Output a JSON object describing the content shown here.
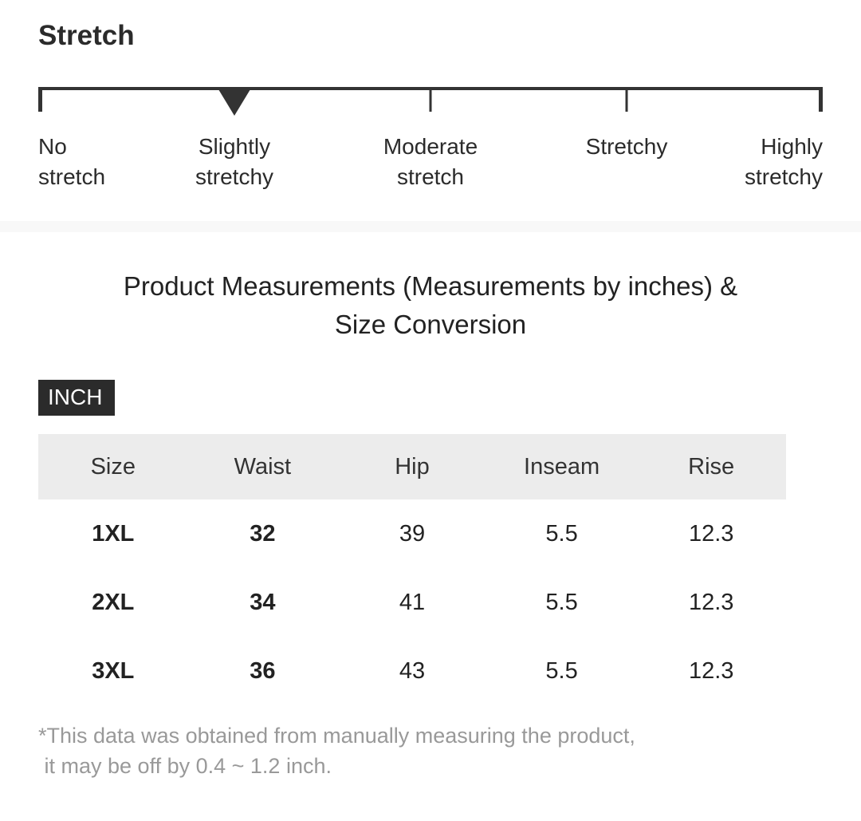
{
  "stretch": {
    "title": "Stretch",
    "levels": [
      {
        "label": "No\nstretch"
      },
      {
        "label": "Slightly\nstretchy"
      },
      {
        "label": "Moderate\nstretch"
      },
      {
        "label": "Stretchy"
      },
      {
        "label": "Highly\nstretchy"
      }
    ],
    "selected_index": 1,
    "selected_level": "Slightly stretchy"
  },
  "measurements": {
    "title": "Product Measurements (Measurements by inches) & Size Conversion",
    "unit_badge": "INCH",
    "table": {
      "columns": [
        "Size",
        "Waist",
        "Hip",
        "Inseam",
        "Rise"
      ],
      "rows": [
        [
          "1XL",
          "32",
          "39",
          "5.5",
          "12.3"
        ],
        [
          "2XL",
          "34",
          "41",
          "5.5",
          "12.3"
        ],
        [
          "3XL",
          "36",
          "43",
          "5.5",
          "12.3"
        ]
      ],
      "bold_columns": [
        0,
        1
      ]
    },
    "footnote_line1": "*This data was obtained from manually measuring the product,",
    "footnote_line2": " it may be off by 0.4 ~ 1.2 inch."
  },
  "colors": {
    "text_dark": "#2b2b2b",
    "scale_line": "#333333",
    "table_header_bg": "#ececec",
    "divider_bg": "#f8f8f8",
    "footnote_gray": "#999999",
    "badge_bg": "#2b2b2b",
    "badge_text": "#ffffff"
  }
}
